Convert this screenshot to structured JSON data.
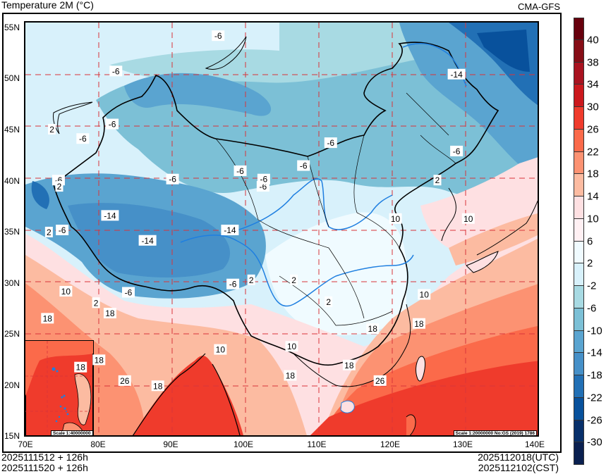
{
  "header": {
    "title": "Temperature  2M (°C)",
    "model": "CMA-GFS"
  },
  "map": {
    "lat_labels": [
      "55N",
      "50N",
      "45N",
      "40N",
      "35N",
      "30N",
      "25N",
      "20N",
      "15N"
    ],
    "lon_labels": [
      "70E",
      "80E",
      "90E",
      "100E",
      "110E",
      "120E",
      "130E",
      "140E"
    ],
    "extent": {
      "lon_min": 70,
      "lon_max": 140,
      "lat_min": 15,
      "lat_max": 55
    },
    "grid_line_color": "#d9343a",
    "river_color": "#1f7fe0",
    "border_color": "#000000",
    "contour_labels": [
      {
        "text": "-6",
        "lon": 82.3,
        "lat": 50.3
      },
      {
        "text": "-6",
        "lon": 96.2,
        "lat": 53.7
      },
      {
        "text": "-6",
        "lon": 81.8,
        "lat": 45.2
      },
      {
        "text": "2",
        "lon": 73.6,
        "lat": 44.7
      },
      {
        "text": "-6",
        "lon": 77.8,
        "lat": 43.8
      },
      {
        "text": "-6",
        "lon": 74.5,
        "lat": 39.8
      },
      {
        "text": "2",
        "lon": 74.6,
        "lat": 39.2
      },
      {
        "text": "-14",
        "lon": 81.5,
        "lat": 36.4
      },
      {
        "text": "2",
        "lon": 73.2,
        "lat": 34.8
      },
      {
        "text": "-6",
        "lon": 75.0,
        "lat": 35.0
      },
      {
        "text": "-14",
        "lon": 86.6,
        "lat": 34.0
      },
      {
        "text": "-6",
        "lon": 90.0,
        "lat": 39.9
      },
      {
        "text": "-14",
        "lon": 97.8,
        "lat": 35.0
      },
      {
        "text": "-6",
        "lon": 99.2,
        "lat": 40.7
      },
      {
        "text": "-6",
        "lon": 102.3,
        "lat": 39.2
      },
      {
        "text": "-6",
        "lon": 107.8,
        "lat": 41.2
      },
      {
        "text": "-6",
        "lon": 111.5,
        "lat": 43.4
      },
      {
        "text": "-6",
        "lon": 102.4,
        "lat": 39.9
      },
      {
        "text": "-14",
        "lon": 128.6,
        "lat": 50.0
      },
      {
        "text": "-6",
        "lon": 128.6,
        "lat": 42.6
      },
      {
        "text": "2",
        "lon": 126.0,
        "lat": 39.8
      },
      {
        "text": "10",
        "lon": 120.3,
        "lat": 36.1
      },
      {
        "text": "10",
        "lon": 130.2,
        "lat": 36.1
      },
      {
        "text": "10",
        "lon": 124.2,
        "lat": 28.8
      },
      {
        "text": "18",
        "lon": 123.5,
        "lat": 26.0
      },
      {
        "text": "10",
        "lon": 75.5,
        "lat": 29.1
      },
      {
        "text": "2",
        "lon": 79.6,
        "lat": 28.0
      },
      {
        "text": "-6",
        "lon": 84.0,
        "lat": 29.0
      },
      {
        "text": "18",
        "lon": 73.0,
        "lat": 26.5
      },
      {
        "text": "18",
        "lon": 81.5,
        "lat": 27.0
      },
      {
        "text": "18",
        "lon": 80.0,
        "lat": 22.5
      },
      {
        "text": "18",
        "lon": 77.5,
        "lat": 21.8
      },
      {
        "text": "26",
        "lon": 83.5,
        "lat": 20.5
      },
      {
        "text": "18",
        "lon": 88.0,
        "lat": 20.0
      },
      {
        "text": "-6",
        "lon": 98.2,
        "lat": 29.8
      },
      {
        "text": "2",
        "lon": 100.7,
        "lat": 30.2
      },
      {
        "text": "2",
        "lon": 106.5,
        "lat": 30.2
      },
      {
        "text": "2",
        "lon": 111.2,
        "lat": 28.1
      },
      {
        "text": "10",
        "lon": 96.5,
        "lat": 23.5
      },
      {
        "text": "10",
        "lon": 106.2,
        "lat": 23.8
      },
      {
        "text": "18",
        "lon": 106.0,
        "lat": 21.0
      },
      {
        "text": "18",
        "lon": 114.0,
        "lat": 22.0
      },
      {
        "text": "26",
        "lon": 118.2,
        "lat": 20.5
      },
      {
        "text": "18",
        "lon": 117.2,
        "lat": 25.5
      }
    ],
    "inset": {
      "scale": "Scale 1:40000000"
    },
    "main_scale": "Scale 1:20000000 No:GS (2019) 1786"
  },
  "footer": {
    "left_line1": "2025111512 + 126h",
    "left_line2": "2025111520 + 126h",
    "right_line1": "2025112018(UTC)",
    "right_line2": "2025112102(CST)"
  },
  "colorbar": {
    "labels": [
      "40",
      "38",
      "34",
      "30",
      "26",
      "22",
      "18",
      "14",
      "10",
      "6",
      "2",
      "-2",
      "-6",
      "-10",
      "-14",
      "-18",
      "-22",
      "-26",
      "-30"
    ],
    "colors": [
      "#67000d",
      "#860d16",
      "#a91320",
      "#cb181d",
      "#ef3b2c",
      "#fb6a4a",
      "#fc9272",
      "#fcbba1",
      "#fee0e2",
      "#fff0f3",
      "#f0fbff",
      "#d8f1fb",
      "#a8dae3",
      "#7cc0d6",
      "#5aa4d0",
      "#4690c8",
      "#2270b5",
      "#08519c",
      "#08306b",
      "#0a2050"
    ]
  }
}
